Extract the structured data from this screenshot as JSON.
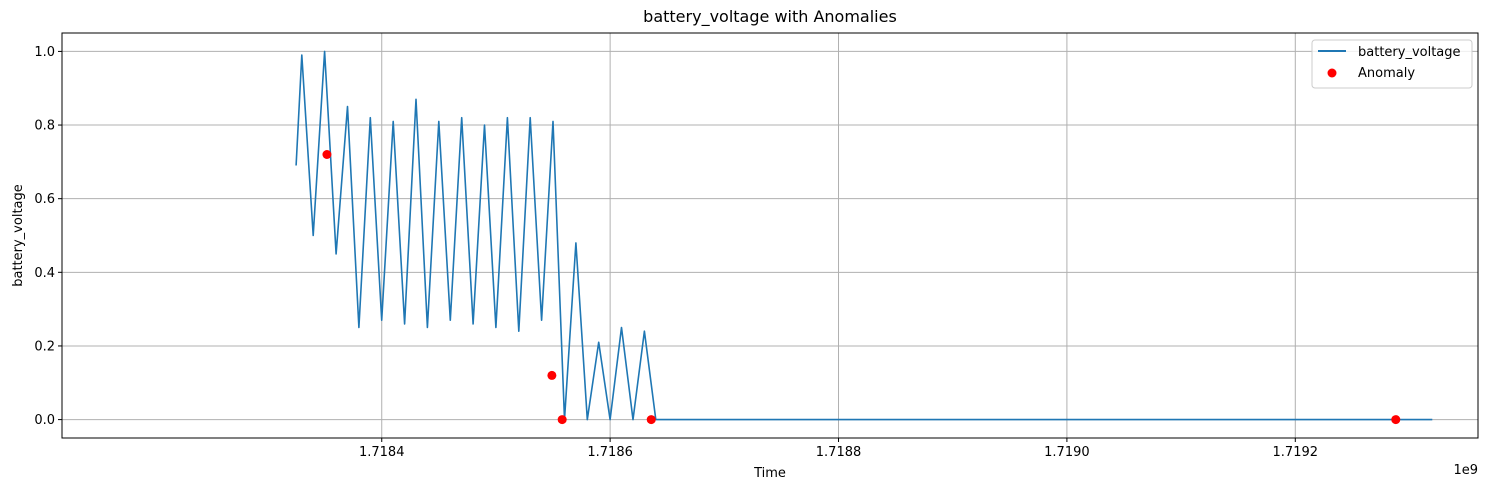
{
  "chart_data": {
    "type": "line",
    "title": "battery_voltage with Anomalies",
    "xlabel": "Time",
    "ylabel": "battery_voltage",
    "x_offset_label": "1e9",
    "xlim": [
      1.71812,
      1.71936
    ],
    "ylim": [
      -0.05,
      1.05
    ],
    "xticks": [
      1.7184,
      1.7186,
      1.7188,
      1.719,
      1.7192
    ],
    "xtick_labels": [
      "1.7184",
      "1.7186",
      "1.7188",
      "1.7190",
      "1.7192"
    ],
    "yticks": [
      0.0,
      0.2,
      0.4,
      0.6,
      0.8,
      1.0
    ],
    "ytick_labels": [
      "0.0",
      "0.2",
      "0.4",
      "0.6",
      "0.8",
      "1.0"
    ],
    "grid": true,
    "legend_position": "top-right",
    "colors": {
      "line": "#1f77b4",
      "anomaly": "#ff0000",
      "grid": "#b0b0b0"
    },
    "series": [
      {
        "name": "battery_voltage",
        "kind": "line",
        "x": [
          1.718325,
          1.71833,
          1.71834,
          1.71835,
          1.71836,
          1.71837,
          1.71838,
          1.71839,
          1.7184,
          1.71841,
          1.71842,
          1.71843,
          1.71844,
          1.71845,
          1.71846,
          1.71847,
          1.71848,
          1.71849,
          1.7185,
          1.71851,
          1.71852,
          1.71853,
          1.71854,
          1.71855,
          1.71856,
          1.71857,
          1.71858,
          1.71859,
          1.7186,
          1.71861,
          1.71862,
          1.71863,
          1.71864,
          1.7187,
          1.7188,
          1.7189,
          1.719,
          1.7191,
          1.7192,
          1.71932
        ],
        "y": [
          0.69,
          0.99,
          0.5,
          1.0,
          0.45,
          0.85,
          0.25,
          0.82,
          0.27,
          0.81,
          0.26,
          0.87,
          0.25,
          0.81,
          0.27,
          0.82,
          0.26,
          0.8,
          0.25,
          0.82,
          0.24,
          0.82,
          0.27,
          0.81,
          0.0,
          0.48,
          0.0,
          0.21,
          0.0,
          0.25,
          0.0,
          0.24,
          0.0,
          0.0,
          0.0,
          0.0,
          0.0,
          0.0,
          0.0,
          0.0
        ]
      },
      {
        "name": "Anomaly",
        "kind": "scatter",
        "x": [
          1.718352,
          1.718549,
          1.718558,
          1.718636,
          1.719288
        ],
        "y": [
          0.72,
          0.12,
          0.0,
          0.0,
          0.0
        ]
      }
    ]
  }
}
